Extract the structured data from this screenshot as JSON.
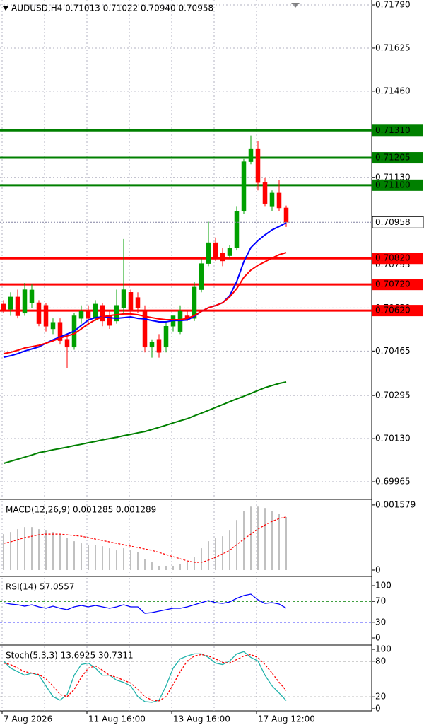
{
  "chart_data": [
    {
      "type": "candlestick",
      "title": "AUDUSD,H4  0.71013 0.71022 0.70940 0.70958",
      "categories": [
        "7 Aug 2026",
        null,
        null,
        null,
        null,
        null,
        null,
        null,
        null,
        null,
        null,
        null,
        "11 Aug 16:00",
        null,
        null,
        null,
        null,
        null,
        null,
        null,
        null,
        null,
        null,
        null,
        "13 Aug 16:00",
        null,
        null,
        null,
        null,
        null,
        null,
        null,
        null,
        null,
        null,
        null,
        "17 Aug 12:00",
        null,
        null,
        null,
        null
      ],
      "open": [
        0.70645,
        0.70625,
        0.70672,
        0.7061,
        0.7065,
        0.7065,
        0.7064,
        0.7055,
        0.70575,
        0.7051,
        0.7048,
        0.7059,
        0.7062,
        0.7059,
        0.7064,
        0.706,
        0.7058,
        0.7063,
        0.7069,
        0.7067,
        0.7062,
        0.7048,
        0.7051,
        0.7048,
        0.7056,
        0.7054,
        0.706,
        0.7059,
        0.707,
        0.708,
        0.7088,
        0.7084,
        0.7083,
        0.7086,
        0.71,
        0.7119,
        0.7124,
        0.7111,
        0.7102,
        0.7107,
        0.71013
      ],
      "high": [
        0.7066,
        0.7069,
        0.707,
        0.70726,
        0.7072,
        0.7066,
        0.7065,
        0.7059,
        0.7059,
        0.7053,
        0.7061,
        0.7064,
        0.7064,
        0.7066,
        0.7065,
        0.7062,
        0.707,
        0.70894,
        0.707,
        0.7069,
        0.7064,
        0.7051,
        0.7053,
        0.7058,
        0.706,
        0.7064,
        0.7062,
        0.7073,
        0.7082,
        0.7096,
        0.709,
        0.7086,
        0.7087,
        0.7102,
        0.712,
        0.7129,
        0.7127,
        0.7113,
        0.7108,
        0.7112,
        0.71022
      ],
      "low": [
        0.7061,
        0.706,
        0.7059,
        0.706,
        0.7063,
        0.7056,
        0.7054,
        0.7053,
        0.7049,
        0.70401,
        0.7047,
        0.7057,
        0.7057,
        0.7058,
        0.7056,
        0.7055,
        0.7057,
        0.7061,
        0.706,
        0.7061,
        0.7046,
        0.7044,
        0.7044,
        0.7046,
        0.7054,
        0.7053,
        0.7058,
        0.7058,
        0.7069,
        0.7079,
        0.7081,
        0.7079,
        0.7082,
        0.7085,
        0.7099,
        0.7118,
        0.7108,
        0.7102,
        0.71,
        0.71,
        0.7094
      ],
      "close": [
        0.7062,
        0.70672,
        0.706,
        0.707,
        0.70699,
        0.7057,
        0.7056,
        0.70575,
        0.70505,
        0.7048,
        0.706,
        0.7062,
        0.7059,
        0.70645,
        0.7058,
        0.70563,
        0.7064,
        0.707,
        0.7062,
        0.7063,
        0.7048,
        0.705,
        0.7046,
        0.7056,
        0.706,
        0.7062,
        0.7059,
        0.7071,
        0.708,
        0.7088,
        0.7082,
        0.7081,
        0.7086,
        0.71,
        0.7119,
        0.7124,
        0.7111,
        0.7103,
        0.7107,
        0.71013,
        0.70958
      ],
      "up_color": "#00a000",
      "down_color": "#ff0000",
      "series": [
        {
          "color": "#0000ff",
          "values": [
            0.70441,
            0.70447,
            0.70455,
            0.70465,
            0.70473,
            0.70481,
            0.70495,
            0.70508,
            0.70519,
            0.7053,
            0.70541,
            0.70563,
            0.70584,
            0.70593,
            0.70596,
            0.70593,
            0.7059,
            0.70593,
            0.70596,
            0.7059,
            0.70588,
            0.70582,
            0.70577,
            0.70577,
            0.70582,
            0.70582,
            0.70584,
            0.70598,
            0.70617,
            0.70631,
            0.70639,
            0.7065,
            0.70677,
            0.70731,
            0.70807,
            0.70861,
            0.70888,
            0.7091,
            0.70929,
            0.70942,
            0.70956
          ]
        },
        {
          "color": "#ff0000",
          "values": [
            0.70455,
            0.7046,
            0.70468,
            0.70477,
            0.70482,
            0.70487,
            0.70495,
            0.70504,
            0.70515,
            0.70523,
            0.70531,
            0.7055,
            0.70569,
            0.70585,
            0.70596,
            0.70601,
            0.70604,
            0.70607,
            0.70607,
            0.70604,
            0.70598,
            0.70593,
            0.70588,
            0.70585,
            0.70585,
            0.70585,
            0.7059,
            0.70601,
            0.70617,
            0.70631,
            0.70639,
            0.7065,
            0.70672,
            0.70704,
            0.70747,
            0.70775,
            0.70793,
            0.70807,
            0.70821,
            0.70834,
            0.70842
          ]
        },
        {
          "color": "#008000",
          "values": [
            0.70035,
            0.70043,
            0.70051,
            0.70059,
            0.70067,
            0.70076,
            0.70081,
            0.70087,
            0.70092,
            0.70097,
            0.70103,
            0.70108,
            0.70114,
            0.70119,
            0.70125,
            0.7013,
            0.70135,
            0.70141,
            0.70146,
            0.70152,
            0.70157,
            0.70165,
            0.70173,
            0.70181,
            0.7019,
            0.70198,
            0.70206,
            0.70217,
            0.70227,
            0.70238,
            0.70249,
            0.7026,
            0.70271,
            0.70282,
            0.70292,
            0.70303,
            0.70314,
            0.70325,
            0.70333,
            0.70341,
            0.70347
          ]
        }
      ],
      "ylim": [
        0.699,
        0.71809
      ],
      "yticks": [
        {
          "value": 0.7179,
          "label": "0.71790"
        },
        0.71625,
        {
          "value": 0.7146,
          "label": "0.71460"
        },
        {
          "value": 0.7113,
          "label": "0.71130"
        },
        0.70795,
        {
          "value": 0.7063,
          "label": "0.70630"
        },
        0.70465,
        0.70295,
        {
          "value": 0.7013,
          "label": "0.70130"
        },
        0.69965
      ],
      "levels": [
        {
          "value": 0.7131,
          "label": "0.71310",
          "color": "#008000"
        },
        {
          "value": 0.71205,
          "label": "0.71205",
          "color": "#008000"
        },
        {
          "value": 0.711,
          "label": "0.71100",
          "color": "#008000"
        },
        {
          "value": 0.7082,
          "label": "0.70820",
          "color": "#ff0000"
        },
        {
          "value": 0.7072,
          "label": "0.70720",
          "color": "#ff0000"
        },
        {
          "value": 0.7062,
          "label": "0.70620",
          "color": "#ff0000"
        }
      ],
      "last_price": 0.70958,
      "grid": true
    },
    {
      "type": "macd",
      "title": "MACD(12,26,9) 0.001285 0.001289",
      "series": [
        {
          "kind": "bar",
          "color": "#c0c0c0",
          "values": [
            0.000872,
            0.000923,
            0.000992,
            0.001043,
            0.001043,
            0.000992,
            0.000958,
            0.000923,
            0.000872,
            0.000787,
            0.000701,
            0.00065,
            0.000616,
            0.000616,
            0.000581,
            0.00053,
            0.000479,
            0.00053,
            0.000479,
            0.000445,
            0.000274,
            0.000188,
            0.000103,
            0.000103,
            0.000103,
            0.000137,
            0.000188,
            0.000308,
            0.00053,
            0.000701,
            0.000787,
            0.000821,
            0.000958,
            0.001214,
            0.001436,
            0.001539,
            0.001539,
            0.001505,
            0.001436,
            0.001368,
            0.001285
          ]
        },
        {
          "kind": "line",
          "dash": true,
          "color": "#ff0000",
          "values": [
            0.00065,
            0.000684,
            0.000735,
            0.000787,
            0.000821,
            0.000855,
            0.000872,
            0.000872,
            0.000872,
            0.000855,
            0.000838,
            0.000821,
            0.000787,
            0.000752,
            0.000718,
            0.000684,
            0.00065,
            0.000616,
            0.000581,
            0.000547,
            0.000513,
            0.000479,
            0.000428,
            0.000376,
            0.000325,
            0.000274,
            0.000222,
            0.000188,
            0.000188,
            0.000239,
            0.000308,
            0.000393,
            0.000479,
            0.000616,
            0.000752,
            0.000872,
            0.000992,
            0.001094,
            0.00118,
            0.001248,
            0.001289
          ]
        }
      ],
      "ylim": [
        -0.00012,
        0.00168
      ],
      "yticks": [
        0.001579,
        0
      ]
    },
    {
      "type": "line",
      "title": "RSI(14) 57.0557",
      "series": [
        {
          "color": "#0000ff",
          "values": [
            67.6,
            64.9,
            63.5,
            60.8,
            63.5,
            59.5,
            56.8,
            60.8,
            56.8,
            54.1,
            59.5,
            62.2,
            59.5,
            62.2,
            59.5,
            56.8,
            59.5,
            63.5,
            59.5,
            59.5,
            47.3,
            48.6,
            51.4,
            54.1,
            56.8,
            56.8,
            59.5,
            63.5,
            67.6,
            71.6,
            67.6,
            66.2,
            68.9,
            75.7,
            81.1,
            83.8,
            73.0,
            66.2,
            67.6,
            64.9,
            57.0557
          ]
        }
      ],
      "levels": [
        {
          "value": 70,
          "color": "#008000"
        },
        {
          "value": 30,
          "color": "#0000ff"
        }
      ],
      "ylim": [
        -10.8,
        114.9
      ],
      "yticks": [
        100,
        70,
        30,
        0
      ]
    },
    {
      "type": "line",
      "title": "Stoch(5,3,3) 13.6925 30.7311",
      "series": [
        {
          "color": "#20b2aa",
          "values": [
            80.4,
            68.4,
            62.4,
            56.4,
            60.0,
            56.4,
            38.4,
            20.4,
            14.4,
            24.0,
            56.4,
            74.4,
            76.8,
            68.4,
            56.4,
            56.4,
            48.0,
            44.4,
            38.4,
            20.4,
            12.0,
            10.8,
            14.4,
            38.4,
            68.4,
            84.0,
            88.8,
            92.4,
            92.4,
            86.4,
            76.8,
            74.4,
            80.4,
            92.4,
            96.0,
            86.4,
            80.4,
            56.4,
            38.4,
            26.4,
            13.6925
          ]
        },
        {
          "color": "#ff0000",
          "dash": true,
          "values": [
            76.8,
            74.4,
            68.4,
            62.4,
            60.0,
            57.6,
            50.4,
            38.4,
            24.0,
            20.4,
            32.4,
            52.8,
            68.4,
            72.0,
            64.8,
            56.4,
            52.8,
            48.0,
            43.2,
            32.4,
            20.4,
            14.4,
            13.2,
            20.4,
            40.8,
            62.4,
            80.4,
            88.8,
            91.2,
            88.8,
            84.0,
            78.0,
            76.8,
            82.8,
            88.8,
            91.2,
            86.4,
            74.4,
            60.0,
            44.4,
            30.7311
          ]
        }
      ],
      "levels": [
        {
          "value": 80,
          "color": "#808080"
        },
        {
          "value": 20,
          "color": "#808080"
        }
      ],
      "ylim": [
        -3.6,
        104.8
      ],
      "yticks": [
        100,
        80,
        20,
        0
      ]
    }
  ]
}
